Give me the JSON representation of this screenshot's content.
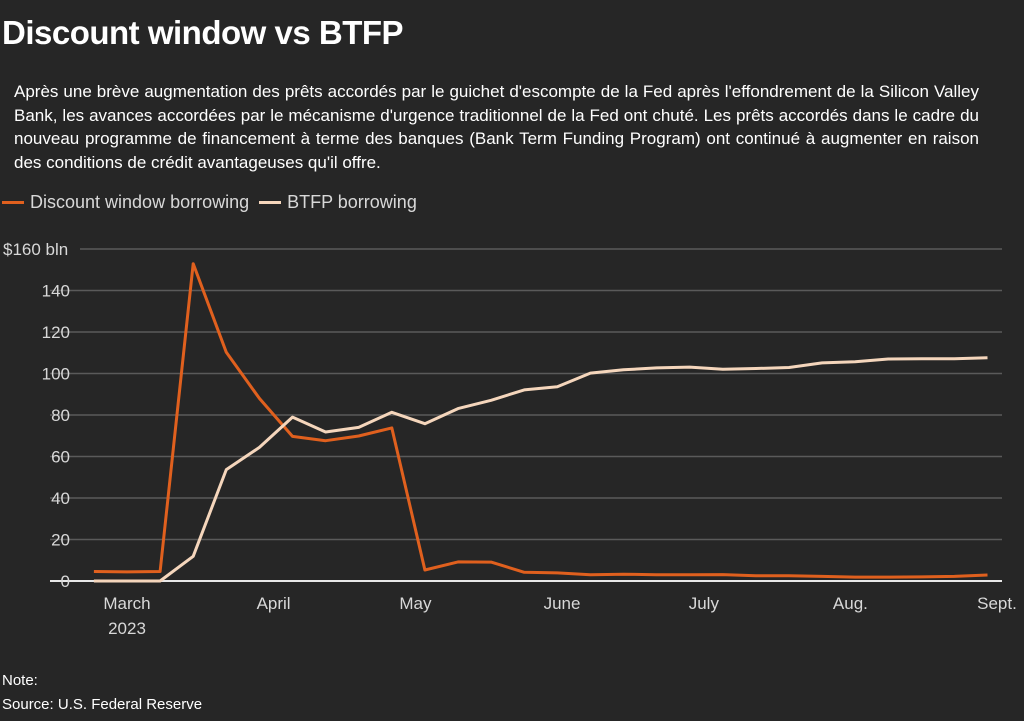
{
  "title": "Discount window vs BTFP",
  "subtitle": "Après une brève augmentation des prêts accordés par le guichet d'escompte de la Fed après l'effondrement de la Silicon Valley Bank, les avances accordées par le mécanisme d'urgence traditionnel de la Fed ont chuté. Les prêts accordés dans le cadre du nouveau programme de financement à terme des banques (Bank Term Funding Program) ont continué à augmenter en raison des conditions de crédit avantageuses qu'il offre.",
  "note": "Note:",
  "source": "Source: U.S. Federal Reserve",
  "chart_data": {
    "type": "line",
    "title": "Discount window vs BTFP",
    "xlabel": "",
    "ylabel": "",
    "ylim": [
      0,
      160
    ],
    "yticks": [
      0,
      20,
      40,
      60,
      80,
      100,
      120,
      140,
      160
    ],
    "ytick_labels": [
      "0",
      "20",
      "40",
      "60",
      "80",
      "100",
      "120",
      "140",
      "$160 bln"
    ],
    "x_tick_labels": [
      {
        "label": "March",
        "sub": "2023",
        "date": "2023-03-01"
      },
      {
        "label": "April",
        "date": "2023-04-01"
      },
      {
        "label": "May",
        "date": "2023-05-01"
      },
      {
        "label": "June",
        "date": "2023-06-01"
      },
      {
        "label": "July",
        "date": "2023-07-01"
      },
      {
        "label": "Aug.",
        "date": "2023-08-01"
      },
      {
        "label": "Sept.",
        "date": "2023-09-01"
      }
    ],
    "grid": true,
    "legend": "top-left",
    "x": [
      "2023-02-22",
      "2023-03-01",
      "2023-03-08",
      "2023-03-15",
      "2023-03-22",
      "2023-03-29",
      "2023-04-05",
      "2023-04-12",
      "2023-04-19",
      "2023-04-26",
      "2023-05-03",
      "2023-05-10",
      "2023-05-17",
      "2023-05-24",
      "2023-05-31",
      "2023-06-07",
      "2023-06-14",
      "2023-06-21",
      "2023-06-28",
      "2023-07-05",
      "2023-07-12",
      "2023-07-19",
      "2023-07-26",
      "2023-08-02",
      "2023-08-09",
      "2023-08-16",
      "2023-08-23",
      "2023-08-30"
    ],
    "series": [
      {
        "name": "Discount window borrowing",
        "color": "#e0601e",
        "values": [
          4.6,
          4.4,
          4.6,
          152.9,
          110.2,
          88.0,
          69.7,
          67.6,
          69.9,
          73.8,
          5.3,
          9.2,
          9.1,
          4.2,
          3.9,
          3.0,
          3.3,
          3.0,
          3.0,
          3.1,
          2.5,
          2.5,
          2.2,
          1.9,
          1.9,
          2.0,
          2.2,
          2.9
        ]
      },
      {
        "name": "BTFP borrowing",
        "color": "#f5d6bc",
        "values": [
          0,
          0,
          0,
          11.9,
          53.7,
          64.4,
          79.0,
          71.8,
          74.0,
          81.3,
          75.8,
          83.1,
          87.1,
          92.1,
          93.6,
          100.2,
          101.8,
          102.7,
          103.1,
          102.0,
          102.4,
          102.9,
          105.1,
          105.7,
          107.0,
          107.1,
          107.1,
          107.6
        ]
      }
    ]
  }
}
